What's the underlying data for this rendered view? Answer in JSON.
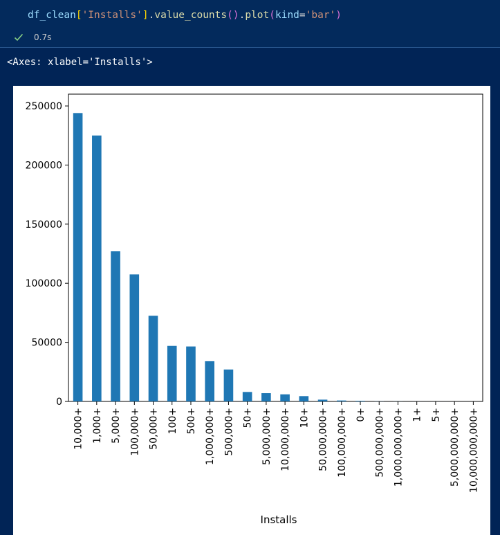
{
  "cell": {
    "code_parts": {
      "var": "df_clean",
      "key": "'Installs'",
      "method1": "value_counts",
      "method2": "plot",
      "param": "kind",
      "value": "'bar'"
    },
    "status": {
      "icon": "check-icon",
      "duration": "0.7s"
    },
    "output_repr": "<Axes: xlabel='Installs'>"
  },
  "colors": {
    "background": "#012456",
    "bar": "#1f77b4",
    "check": "#89d185"
  },
  "chart_data": {
    "type": "bar",
    "title": "",
    "xlabel": "Installs",
    "ylabel": "",
    "ylim": [
      0,
      260000
    ],
    "yticks": [
      0,
      50000,
      100000,
      150000,
      200000,
      250000
    ],
    "categories": [
      "10,000+",
      "1,000+",
      "5,000+",
      "100,000+",
      "50,000+",
      "100+",
      "500+",
      "1,000,000+",
      "500,000+",
      "50+",
      "5,000,000+",
      "10,000,000+",
      "10+",
      "50,000,000+",
      "100,000,000+",
      "0+",
      "500,000,000+",
      "1,000,000,000+",
      "1+",
      "5+",
      "5,000,000,000+",
      "10,000,000,000+"
    ],
    "values": [
      244000,
      225000,
      127000,
      107500,
      72500,
      47000,
      46500,
      34000,
      27000,
      8000,
      7000,
      6000,
      4500,
      1500,
      800,
      500,
      100,
      60,
      20,
      10,
      5,
      2
    ],
    "grid": false,
    "legend": "none"
  }
}
